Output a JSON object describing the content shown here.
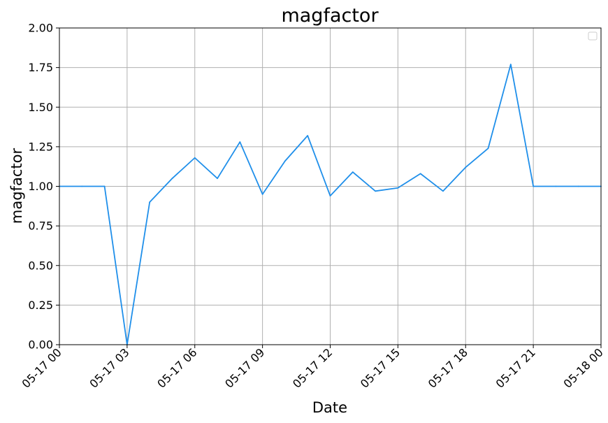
{
  "chart_data": {
    "type": "line",
    "title": "magfactor",
    "xlabel": "Date",
    "ylabel": "magfactor",
    "xlim": [
      "05-17 00",
      "05-18 00"
    ],
    "ylim": [
      0,
      2
    ],
    "grid": true,
    "legend": "top-right, empty",
    "x_ticks": [
      "05-17 00",
      "05-17 03",
      "05-17 06",
      "05-17 09",
      "05-17 12",
      "05-17 15",
      "05-17 18",
      "05-17 21",
      "05-18 00"
    ],
    "y_ticks": [
      "0.00",
      "0.25",
      "0.50",
      "0.75",
      "1.00",
      "1.25",
      "1.50",
      "1.75",
      "2.00"
    ],
    "series": [
      {
        "color": "#1f8fea",
        "points": [
          {
            "x": "05-17 00:00",
            "y": 1.0
          },
          {
            "x": "05-17 01:00",
            "y": 1.0
          },
          {
            "x": "05-17 02:00",
            "y": 1.0
          },
          {
            "x": "05-17 03:00",
            "y": 0.0
          },
          {
            "x": "05-17 04:00",
            "y": 0.9
          },
          {
            "x": "05-17 05:00",
            "y": 1.05
          },
          {
            "x": "05-17 06:00",
            "y": 1.18
          },
          {
            "x": "05-17 07:00",
            "y": 1.05
          },
          {
            "x": "05-17 08:00",
            "y": 1.28
          },
          {
            "x": "05-17 09:00",
            "y": 0.95
          },
          {
            "x": "05-17 10:00",
            "y": 1.16
          },
          {
            "x": "05-17 11:00",
            "y": 1.32
          },
          {
            "x": "05-17 12:00",
            "y": 0.94
          },
          {
            "x": "05-17 13:00",
            "y": 1.09
          },
          {
            "x": "05-17 14:00",
            "y": 0.97
          },
          {
            "x": "05-17 15:00",
            "y": 0.99
          },
          {
            "x": "05-17 16:00",
            "y": 1.08
          },
          {
            "x": "05-17 17:00",
            "y": 0.97
          },
          {
            "x": "05-17 18:00",
            "y": 1.12
          },
          {
            "x": "05-17 19:00",
            "y": 1.24
          },
          {
            "x": "05-17 20:00",
            "y": 1.77
          },
          {
            "x": "05-17 21:00",
            "y": 1.0
          },
          {
            "x": "05-17 22:00",
            "y": 1.0
          },
          {
            "x": "05-17 23:00",
            "y": 1.0
          },
          {
            "x": "05-18 00:00",
            "y": 1.0
          }
        ]
      }
    ]
  }
}
